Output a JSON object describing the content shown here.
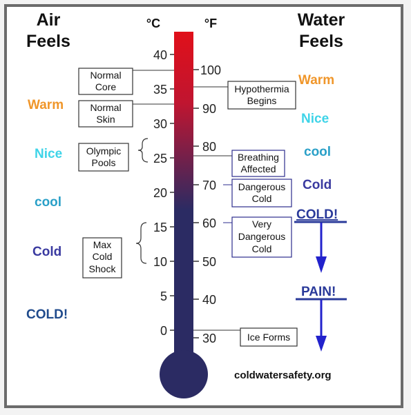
{
  "header": {
    "air_line1": "Air",
    "air_line2": "Feels",
    "celsius_unit": "°C",
    "fahrenheit_unit": "°F",
    "water_line1": "Water",
    "water_line2": "Feels"
  },
  "celsius_ticks": [
    "40",
    "35",
    "30",
    "25",
    "20",
    "15",
    "10",
    "5",
    "0"
  ],
  "fahrenheit_ticks": [
    "100",
    "90",
    "80",
    "70",
    "60",
    "50",
    "40",
    "30"
  ],
  "air_feels": [
    "Warm",
    "Nice",
    "cool",
    "Cold",
    "COLD!"
  ],
  "water_feels": [
    "Warm",
    "Nice",
    "cool",
    "Cold",
    "COLD!",
    "PAIN!"
  ],
  "left_boxes": {
    "normal_core": [
      "Normal",
      "Core"
    ],
    "normal_skin": [
      "Normal",
      "Skin"
    ],
    "olympic_pools": [
      "Olympic",
      "Pools"
    ],
    "max_cold_shock": [
      "Max",
      "Cold",
      "Shock"
    ]
  },
  "right_boxes": {
    "hypothermia": [
      "Hypothermia",
      "Begins"
    ],
    "breathing": [
      "Breathing",
      "Affected"
    ],
    "dangerous_cold": [
      "Dangerous",
      "Cold"
    ],
    "very_dangerous_cold": [
      "Very",
      "Dangerous",
      "Cold"
    ],
    "ice_forms": [
      "Ice Forms"
    ]
  },
  "source": "coldwatersafety.org",
  "colors": {
    "warm": "#f0962a",
    "nice": "#3fd4e8",
    "cool": "#2aa0c8",
    "cold": "#3a3aa0",
    "cold_bang": "#1f4a8c",
    "arrow": "#2222cc",
    "tube_top": "#e0101a",
    "tube_bottom": "#2b2b63"
  }
}
